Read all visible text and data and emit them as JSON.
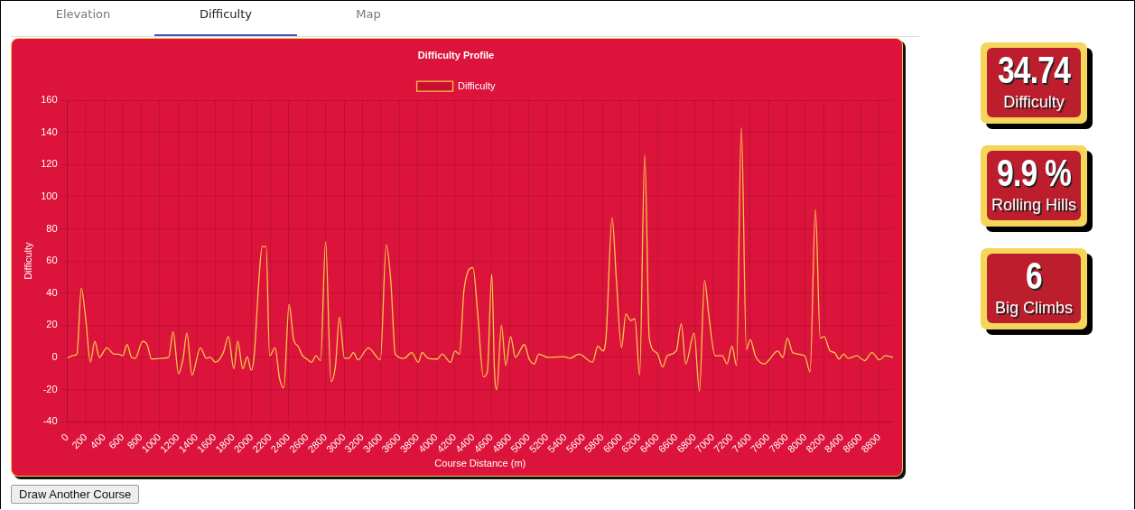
{
  "chart_data": [
    {
      "type": "other",
      "annotations": [
        "Elevation",
        "Difficulty",
        "Map"
      ]
    },
    {
      "type": "line",
      "title": "Difficulty Profile",
      "xlabel": "Course Distance (m)",
      "ylabel": "Difficulty",
      "xlim": [
        0,
        8950
      ],
      "xticks": [
        0,
        200,
        400,
        600,
        800,
        1000,
        1200,
        1400,
        1600,
        1800,
        2000,
        2200,
        2400,
        2600,
        2800,
        3000,
        3200,
        3400,
        3600,
        3800,
        4000,
        4200,
        4400,
        4600,
        4800,
        5000,
        5200,
        5400,
        5600,
        5800,
        6000,
        6200,
        6400,
        6600,
        6800,
        7000,
        7200,
        7400,
        7600,
        7800,
        8000,
        8200,
        8400,
        8600,
        8800
      ],
      "ylim": [
        -40,
        160
      ],
      "yticks": [
        -40,
        -20,
        0,
        20,
        40,
        60,
        80,
        100,
        120,
        140,
        160
      ],
      "grid": true,
      "legend": "top",
      "marker": "none",
      "line_style": "solid",
      "series": [
        {
          "name": "Difficulty",
          "color": "#f7c948",
          "x": [
            0,
            55,
            104,
            152,
            201,
            250,
            298,
            347,
            428,
            509,
            557,
            600,
            648,
            697,
            736,
            817,
            865,
            914,
            1027,
            1098,
            1147,
            1205,
            1254,
            1296,
            1351,
            1442,
            1507,
            1552,
            1604,
            1691,
            1746,
            1805,
            1847,
            1902,
            1950,
            1993,
            2025,
            2080,
            2112,
            2155,
            2193,
            2252,
            2300,
            2346,
            2404,
            2453,
            2501,
            2550,
            2598,
            2647,
            2696,
            2745,
            2800,
            2858,
            2907,
            2949,
            3004,
            3052,
            3101,
            3150,
            3263,
            3393,
            3457,
            3506,
            3555,
            3652,
            3733,
            3804,
            3846,
            3911,
            4008,
            4063,
            4154,
            4203,
            4251,
            4300,
            4397,
            4446,
            4510,
            4553,
            4601,
            4630,
            4656,
            4705,
            4753,
            4805,
            4857,
            4954,
            5006,
            5061,
            5110,
            5207,
            5369,
            5450,
            5547,
            5693,
            5751,
            5806,
            5839,
            5905,
            5952,
            6007,
            6055,
            6107,
            6152,
            6204,
            6259,
            6308,
            6389,
            6454,
            6502,
            6600,
            6655,
            6703,
            6794,
            6852,
            6907,
            6956,
            7021,
            7102,
            7150,
            7205,
            7254,
            7306,
            7361,
            7403,
            7458,
            7555,
            7701,
            7756,
            7805,
            7863,
            7993,
            8051,
            8109,
            8161,
            8203,
            8268,
            8317,
            8365,
            8414,
            8463,
            8560,
            8641,
            8722,
            8803,
            8868,
            8950
          ],
          "values": [
            -0.5,
            1,
            2,
            43,
            23,
            -3,
            10,
            0,
            6,
            2,
            2,
            1,
            8,
            0,
            -0.5,
            10,
            8,
            -1,
            -0.5,
            0,
            16,
            -10,
            -1,
            15,
            -11,
            6,
            -0.5,
            0,
            -3,
            3,
            13,
            -7,
            10,
            -7,
            0.5,
            -8,
            1,
            51,
            69,
            69,
            1,
            6,
            -13,
            -19,
            33,
            11,
            7,
            1,
            -1,
            -3,
            1,
            -2,
            72,
            -15,
            -5,
            25,
            -0.5,
            -0.5,
            3,
            -1.5,
            6,
            -1.5,
            70,
            48,
            2,
            -0.5,
            3,
            -3,
            3,
            -0.5,
            -1,
            2,
            -3,
            4,
            2,
            42,
            56,
            29,
            -12,
            -9,
            52,
            -8,
            -20,
            20,
            -5,
            13,
            0,
            8,
            -1,
            -4,
            2,
            0,
            0.5,
            -0.5,
            2,
            -3,
            7,
            4,
            12,
            87,
            48,
            6,
            27,
            23,
            24,
            -11,
            126,
            12,
            3,
            -6,
            1,
            4,
            21,
            -4,
            15,
            -21,
            48,
            25,
            1,
            1,
            -4,
            7,
            -5,
            143,
            5,
            11,
            1,
            -4,
            4,
            0,
            12,
            3,
            1,
            -9,
            92,
            12,
            13,
            4,
            3,
            -1,
            2,
            -0.5,
            1,
            -2,
            3,
            -1.5,
            1,
            0
          ]
        }
      ]
    },
    {
      "type": "other",
      "annotations": [
        "34.74",
        "Difficulty",
        "9.9 %",
        "Rolling Hills",
        "6",
        "Big Climbs"
      ]
    },
    {
      "type": "other",
      "annotations": [
        "Draw Another Course"
      ]
    }
  ]
}
